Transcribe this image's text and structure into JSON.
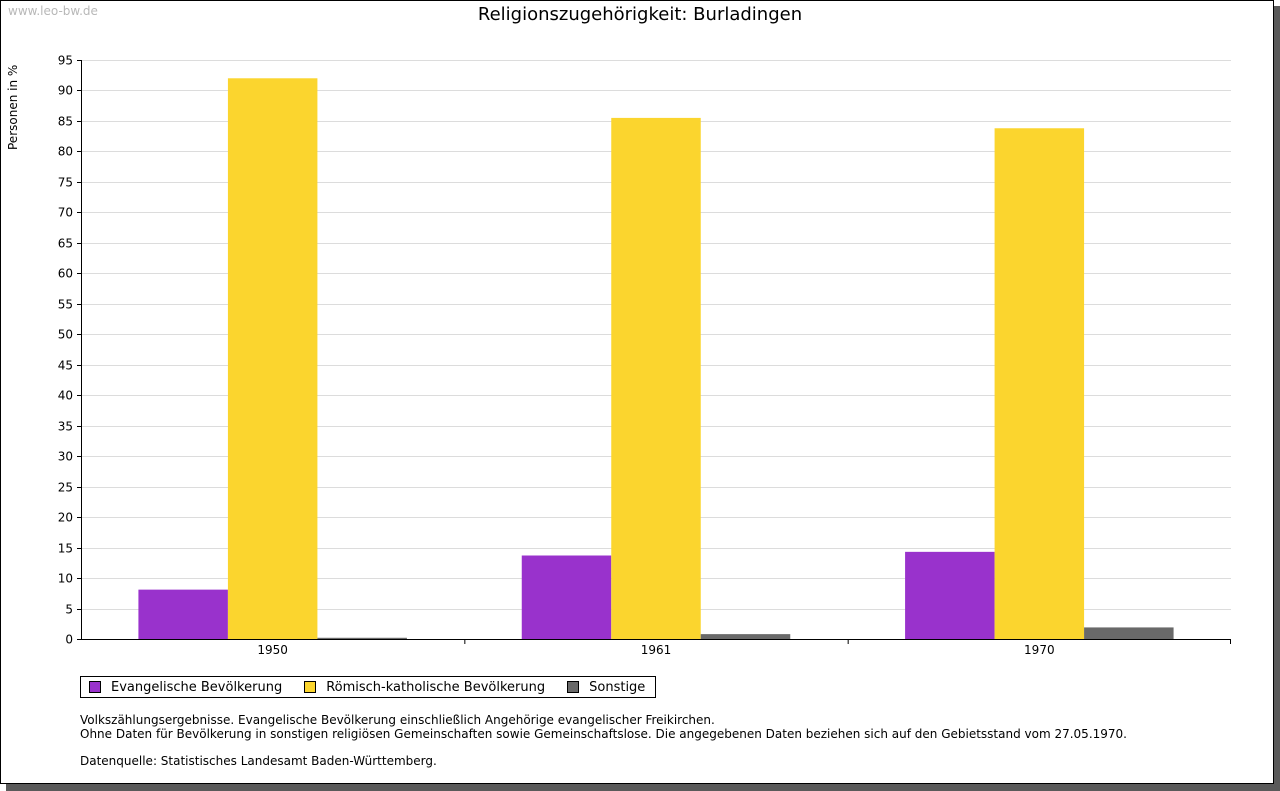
{
  "watermark": "www.leo-bw.de",
  "chart_data": {
    "type": "bar",
    "title": "Religionszugehörigkeit: Burladingen",
    "xlabel": "",
    "ylabel": "Personen in %",
    "ylim": [
      0,
      95
    ],
    "ytick_step": 5,
    "grid": true,
    "categories": [
      "1950",
      "1961",
      "1970"
    ],
    "series": [
      {
        "name": "Evangelische Bevölkerung",
        "color": "#9932cc",
        "values": [
          8.1,
          13.7,
          14.3
        ]
      },
      {
        "name": "Römisch-katholische Bevölkerung",
        "color": "#fbd52e",
        "values": [
          92.0,
          85.5,
          83.8
        ]
      },
      {
        "name": "Sonstige",
        "color": "#696969",
        "values": [
          0.2,
          0.8,
          1.9
        ]
      }
    ],
    "legend": "bottom-left"
  },
  "notes": {
    "line1": "Volkszählungsergebnisse. Evangelische Bevölkerung einschließlich Angehörige evangelischer Freikirchen.",
    "line2": "Ohne Daten für Bevölkerung in sonstigen religiösen Gemeinschaften sowie Gemeinschaftslose. Die angegebenen Daten beziehen sich auf den Gebietsstand vom 27.05.1970.",
    "source": "Datenquelle: Statistisches Landesamt Baden-Württemberg."
  }
}
